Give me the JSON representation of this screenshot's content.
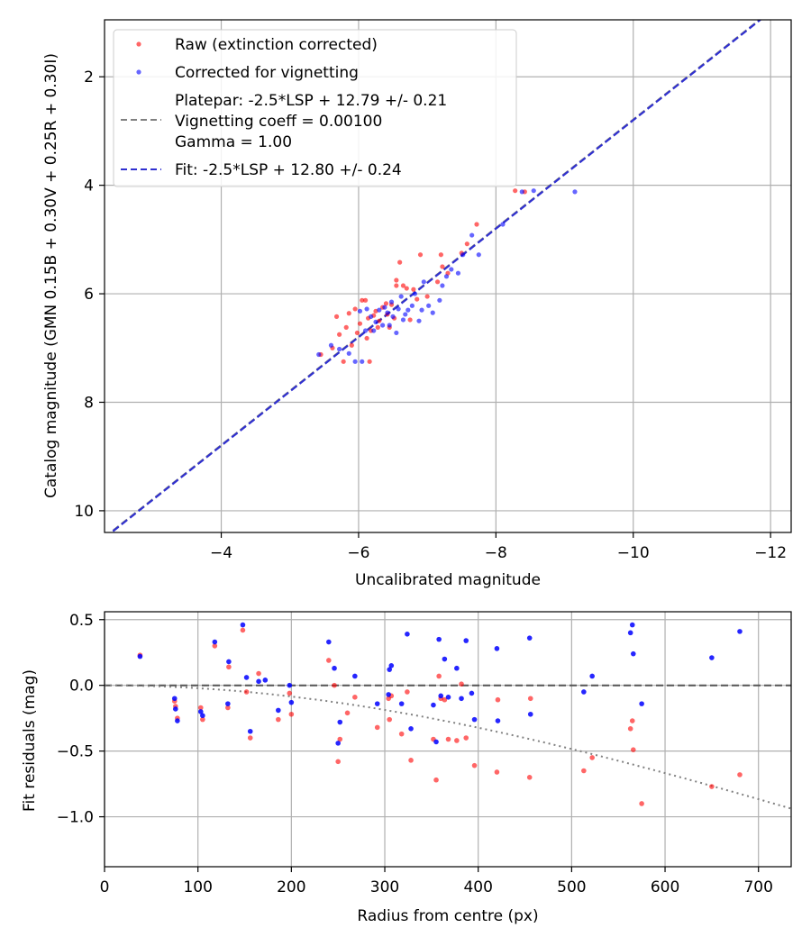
{
  "chart_data": [
    {
      "type": "scatter",
      "xlabel": "Uncalibrated magnitude",
      "ylabel": "Catalog magnitude (GMN 0.15B + 0.30V + 0.25R + 0.30I)",
      "xlim": [
        -2.3,
        -12.3
      ],
      "ylim": [
        10.4,
        0.95
      ],
      "x_ticks": [
        -4,
        -6,
        -8,
        -10,
        -12
      ],
      "x_tick_labels": [
        "−4",
        "−6",
        "−8",
        "−10",
        "−12"
      ],
      "y_ticks": [
        2,
        4,
        6,
        8,
        10
      ],
      "y_tick_labels": [
        "2",
        "4",
        "6",
        "8",
        "10"
      ],
      "grid": true,
      "legend_position": "top-left",
      "legend": {
        "raw": "Raw (extinction corrected)",
        "corrected": "Corrected for vignetting",
        "platepar_lines": [
          "Platepar: -2.5*LSP + 12.79 +/- 0.21",
          "Vignetting coeff = 0.00100",
          "Gamma = 1.00"
        ],
        "fit": "Fit: -2.5*LSP + 12.80 +/- 0.24"
      },
      "colors": {
        "raw": "#ff0000",
        "corrected": "#0000ff",
        "platepar_line": "#808080",
        "fit_line": "#3030d0"
      },
      "fit_line": {
        "slope": 1.0,
        "intercept": 12.8
      },
      "platepar_line": {
        "slope": 1.0,
        "intercept": 12.79
      },
      "series": [
        {
          "name": "Raw (extinction corrected)",
          "points": [
            [
              -5.45,
              7.12
            ],
            [
              -5.62,
              7.0
            ],
            [
              -5.68,
              6.42
            ],
            [
              -5.72,
              6.75
            ],
            [
              -5.78,
              7.25
            ],
            [
              -5.82,
              6.62
            ],
            [
              -5.86,
              6.36
            ],
            [
              -5.9,
              6.95
            ],
            [
              -5.95,
              6.28
            ],
            [
              -5.98,
              6.72
            ],
            [
              -6.02,
              6.55
            ],
            [
              -6.05,
              6.12
            ],
            [
              -6.1,
              6.12
            ],
            [
              -6.12,
              6.82
            ],
            [
              -6.14,
              6.45
            ],
            [
              -6.16,
              7.25
            ],
            [
              -6.18,
              6.68
            ],
            [
              -6.22,
              6.4
            ],
            [
              -6.25,
              6.32
            ],
            [
              -6.28,
              6.62
            ],
            [
              -6.3,
              6.5
            ],
            [
              -6.35,
              6.25
            ],
            [
              -6.4,
              6.18
            ],
            [
              -6.42,
              6.38
            ],
            [
              -6.45,
              6.62
            ],
            [
              -6.48,
              6.2
            ],
            [
              -6.52,
              6.45
            ],
            [
              -6.55,
              5.75
            ],
            [
              -6.55,
              5.85
            ],
            [
              -6.6,
              5.42
            ],
            [
              -6.65,
              5.85
            ],
            [
              -6.7,
              5.9
            ],
            [
              -6.75,
              6.48
            ],
            [
              -6.8,
              5.92
            ],
            [
              -6.85,
              6.1
            ],
            [
              -6.9,
              5.28
            ],
            [
              -7.0,
              6.05
            ],
            [
              -7.15,
              5.78
            ],
            [
              -7.2,
              5.28
            ],
            [
              -7.22,
              5.5
            ],
            [
              -7.3,
              5.62
            ],
            [
              -7.5,
              5.25
            ],
            [
              -7.58,
              5.08
            ],
            [
              -7.72,
              4.72
            ],
            [
              -8.28,
              4.1
            ],
            [
              -8.42,
              4.12
            ]
          ]
        },
        {
          "name": "Corrected for vignetting",
          "points": [
            [
              -5.42,
              7.12
            ],
            [
              -5.6,
              6.95
            ],
            [
              -5.72,
              7.02
            ],
            [
              -5.86,
              7.1
            ],
            [
              -5.95,
              7.25
            ],
            [
              -6.02,
              6.32
            ],
            [
              -6.05,
              7.25
            ],
            [
              -6.1,
              6.68
            ],
            [
              -6.12,
              6.28
            ],
            [
              -6.18,
              6.42
            ],
            [
              -6.22,
              6.68
            ],
            [
              -6.25,
              6.52
            ],
            [
              -6.3,
              6.3
            ],
            [
              -6.35,
              6.58
            ],
            [
              -6.38,
              6.25
            ],
            [
              -6.42,
              6.35
            ],
            [
              -6.45,
              6.58
            ],
            [
              -6.48,
              6.15
            ],
            [
              -6.5,
              6.42
            ],
            [
              -6.55,
              6.72
            ],
            [
              -6.58,
              6.28
            ],
            [
              -6.62,
              6.05
            ],
            [
              -6.65,
              6.48
            ],
            [
              -6.68,
              6.38
            ],
            [
              -6.72,
              6.3
            ],
            [
              -6.78,
              6.22
            ],
            [
              -6.82,
              6.0
            ],
            [
              -6.88,
              6.5
            ],
            [
              -6.92,
              6.3
            ],
            [
              -6.95,
              5.78
            ],
            [
              -7.02,
              6.22
            ],
            [
              -7.08,
              6.35
            ],
            [
              -7.18,
              6.12
            ],
            [
              -7.22,
              5.85
            ],
            [
              -7.28,
              5.68
            ],
            [
              -7.35,
              5.55
            ],
            [
              -7.45,
              5.62
            ],
            [
              -7.52,
              5.28
            ],
            [
              -7.65,
              4.92
            ],
            [
              -7.75,
              5.28
            ],
            [
              -8.1,
              4.72
            ],
            [
              -8.38,
              4.12
            ],
            [
              -8.55,
              4.1
            ],
            [
              -9.15,
              4.12
            ]
          ]
        }
      ]
    },
    {
      "type": "scatter",
      "xlabel": "Radius from centre (px)",
      "ylabel": "Fit residuals (mag)",
      "xlim": [
        0,
        735
      ],
      "ylim": [
        -1.38,
        0.56
      ],
      "x_ticks": [
        0,
        100,
        200,
        300,
        400,
        500,
        600,
        700
      ],
      "x_tick_labels": [
        "0",
        "100",
        "200",
        "300",
        "400",
        "500",
        "600",
        "700"
      ],
      "y_ticks": [
        0.5,
        0.0,
        -0.5,
        -1.0
      ],
      "y_tick_labels": [
        "0.5",
        "0.0",
        "−0.5",
        "−1.0"
      ],
      "grid": true,
      "zero_line": 0.0,
      "vignetting_curve": {
        "coeff": 0.001,
        "style": "dotted"
      },
      "series": [
        {
          "name": "Raw",
          "points": [
            [
              38,
              0.23
            ],
            [
              75,
              -0.12
            ],
            [
              76,
              -0.16
            ],
            [
              78,
              -0.25
            ],
            [
              103,
              -0.17
            ],
            [
              105,
              -0.26
            ],
            [
              118,
              0.3
            ],
            [
              132,
              -0.17
            ],
            [
              133,
              0.14
            ],
            [
              148,
              0.42
            ],
            [
              152,
              -0.05
            ],
            [
              156,
              -0.4
            ],
            [
              165,
              0.09
            ],
            [
              186,
              -0.26
            ],
            [
              198,
              -0.06
            ],
            [
              200,
              -0.22
            ],
            [
              240,
              0.19
            ],
            [
              246,
              0.0
            ],
            [
              250,
              -0.58
            ],
            [
              252,
              -0.41
            ],
            [
              260,
              -0.21
            ],
            [
              268,
              -0.09
            ],
            [
              292,
              -0.32
            ],
            [
              304,
              -0.1
            ],
            [
              305,
              -0.26
            ],
            [
              307,
              -0.08
            ],
            [
              318,
              -0.37
            ],
            [
              324,
              -0.05
            ],
            [
              328,
              -0.57
            ],
            [
              352,
              -0.41
            ],
            [
              355,
              -0.72
            ],
            [
              358,
              0.07
            ],
            [
              360,
              -0.1
            ],
            [
              364,
              -0.11
            ],
            [
              368,
              -0.41
            ],
            [
              377,
              -0.42
            ],
            [
              382,
              0.01
            ],
            [
              387,
              -0.4
            ],
            [
              396,
              -0.61
            ],
            [
              420,
              -0.66
            ],
            [
              421,
              -0.11
            ],
            [
              455,
              -0.7
            ],
            [
              456,
              -0.1
            ],
            [
              513,
              -0.65
            ],
            [
              522,
              -0.55
            ],
            [
              563,
              -0.33
            ],
            [
              565,
              -0.27
            ],
            [
              566,
              -0.49
            ],
            [
              575,
              -0.9
            ],
            [
              650,
              -0.77
            ],
            [
              680,
              -0.68
            ]
          ]
        },
        {
          "name": "Corrected",
          "points": [
            [
              38,
              0.22
            ],
            [
              75,
              -0.1
            ],
            [
              76,
              -0.18
            ],
            [
              78,
              -0.27
            ],
            [
              103,
              -0.2
            ],
            [
              105,
              -0.23
            ],
            [
              118,
              0.33
            ],
            [
              132,
              -0.14
            ],
            [
              133,
              0.18
            ],
            [
              148,
              0.46
            ],
            [
              152,
              0.06
            ],
            [
              156,
              -0.35
            ],
            [
              165,
              0.03
            ],
            [
              172,
              0.04
            ],
            [
              186,
              -0.19
            ],
            [
              198,
              0.0
            ],
            [
              200,
              -0.13
            ],
            [
              240,
              0.33
            ],
            [
              246,
              0.13
            ],
            [
              250,
              -0.44
            ],
            [
              252,
              -0.28
            ],
            [
              268,
              0.07
            ],
            [
              292,
              -0.14
            ],
            [
              304,
              -0.07
            ],
            [
              305,
              0.12
            ],
            [
              307,
              0.15
            ],
            [
              318,
              -0.14
            ],
            [
              324,
              0.39
            ],
            [
              328,
              -0.33
            ],
            [
              352,
              -0.15
            ],
            [
              355,
              -0.43
            ],
            [
              358,
              0.35
            ],
            [
              360,
              -0.08
            ],
            [
              364,
              0.2
            ],
            [
              368,
              -0.09
            ],
            [
              377,
              0.13
            ],
            [
              382,
              -0.1
            ],
            [
              387,
              0.34
            ],
            [
              393,
              -0.06
            ],
            [
              396,
              -0.26
            ],
            [
              420,
              0.28
            ],
            [
              421,
              -0.27
            ],
            [
              455,
              0.36
            ],
            [
              456,
              -0.22
            ],
            [
              513,
              -0.05
            ],
            [
              522,
              0.07
            ],
            [
              563,
              0.4
            ],
            [
              565,
              0.46
            ],
            [
              566,
              0.24
            ],
            [
              575,
              -0.14
            ],
            [
              650,
              0.21
            ],
            [
              680,
              0.41
            ]
          ]
        }
      ]
    }
  ]
}
